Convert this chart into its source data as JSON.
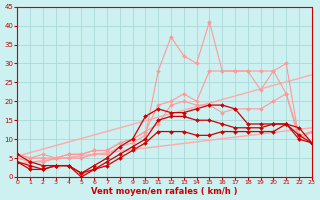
{
  "xlabel": "Vent moyen/en rafales ( km/h )",
  "background_color": "#cdf0f0",
  "grid_color": "#a8d8d8",
  "xlim": [
    0,
    23
  ],
  "ylim": [
    0,
    45
  ],
  "yticks": [
    0,
    5,
    10,
    15,
    20,
    25,
    30,
    35,
    40,
    45
  ],
  "xticks": [
    0,
    1,
    2,
    3,
    4,
    5,
    6,
    7,
    8,
    9,
    10,
    11,
    12,
    13,
    14,
    15,
    16,
    17,
    18,
    19,
    20,
    21,
    22,
    23
  ],
  "lines": [
    {
      "x": [
        0,
        23
      ],
      "y": [
        5.5,
        27
      ],
      "color": "#ffaaaa",
      "lw": 1.0,
      "marker": null,
      "alpha": 1.0
    },
    {
      "x": [
        0,
        23
      ],
      "y": [
        3.5,
        13
      ],
      "color": "#ffaaaa",
      "lw": 1.0,
      "marker": null,
      "alpha": 1.0
    },
    {
      "x": [
        0,
        1,
        2,
        3,
        4,
        5,
        6,
        7,
        8,
        9,
        10,
        11,
        12,
        13,
        14,
        15,
        16,
        17,
        18,
        19,
        20,
        21,
        22,
        23
      ],
      "y": [
        5,
        4,
        4,
        5,
        5,
        5,
        6,
        6,
        8,
        9,
        11,
        28,
        37,
        32,
        30,
        41,
        28,
        28,
        28,
        28,
        28,
        30,
        10,
        12
      ],
      "color": "#ff9999",
      "lw": 0.8,
      "marker": "D",
      "ms": 2.0,
      "alpha": 1.0
    },
    {
      "x": [
        0,
        1,
        2,
        3,
        4,
        5,
        6,
        7,
        8,
        9,
        10,
        11,
        12,
        13,
        14,
        15,
        16,
        17,
        18,
        19,
        20,
        21,
        22,
        23
      ],
      "y": [
        6,
        5,
        5,
        5,
        6,
        6,
        7,
        7,
        9,
        10,
        12,
        19,
        20,
        22,
        20,
        28,
        28,
        28,
        28,
        23,
        28,
        22,
        10,
        12
      ],
      "color": "#ff9999",
      "lw": 0.8,
      "marker": "D",
      "ms": 2.0,
      "alpha": 1.0
    },
    {
      "x": [
        0,
        1,
        2,
        3,
        4,
        5,
        6,
        7,
        8,
        9,
        10,
        11,
        12,
        13,
        14,
        15,
        16,
        17,
        18,
        19,
        20,
        21,
        22,
        23
      ],
      "y": [
        6,
        5,
        6,
        5,
        6,
        6,
        7,
        7,
        9,
        10,
        12,
        14,
        19,
        20,
        19,
        19,
        17,
        18,
        18,
        18,
        20,
        22,
        11,
        12
      ],
      "color": "#ff9999",
      "lw": 0.8,
      "marker": "D",
      "ms": 2.0,
      "alpha": 1.0
    },
    {
      "x": [
        0,
        1,
        2,
        3,
        4,
        5,
        6,
        7,
        8,
        9,
        10,
        11,
        12,
        13,
        14,
        15,
        16,
        17,
        18,
        19,
        20,
        21,
        22,
        23
      ],
      "y": [
        4,
        3,
        2,
        3,
        3,
        1,
        3,
        5,
        8,
        10,
        16,
        18,
        17,
        17,
        18,
        19,
        19,
        18,
        14,
        14,
        14,
        14,
        11,
        9
      ],
      "color": "#cc0000",
      "lw": 0.9,
      "marker": "D",
      "ms": 2.0,
      "alpha": 1.0
    },
    {
      "x": [
        0,
        1,
        2,
        3,
        4,
        5,
        6,
        7,
        8,
        9,
        10,
        11,
        12,
        13,
        14,
        15,
        16,
        17,
        18,
        19,
        20,
        21,
        22,
        23
      ],
      "y": [
        4,
        2,
        2,
        3,
        3,
        0,
        2,
        4,
        6,
        8,
        10,
        15,
        16,
        16,
        15,
        15,
        14,
        13,
        13,
        13,
        14,
        14,
        13,
        9
      ],
      "color": "#cc0000",
      "lw": 0.9,
      "marker": "D",
      "ms": 2.0,
      "alpha": 1.0
    },
    {
      "x": [
        0,
        1,
        2,
        3,
        4,
        5,
        6,
        7,
        8,
        9,
        10,
        11,
        12,
        13,
        14,
        15,
        16,
        17,
        18,
        19,
        20,
        21,
        22,
        23
      ],
      "y": [
        6,
        4,
        3,
        3,
        3,
        1,
        2,
        3,
        5,
        7,
        9,
        12,
        12,
        12,
        11,
        11,
        12,
        12,
        12,
        12,
        12,
        14,
        10,
        9
      ],
      "color": "#cc0000",
      "lw": 0.9,
      "marker": "D",
      "ms": 2.0,
      "alpha": 1.0
    }
  ]
}
